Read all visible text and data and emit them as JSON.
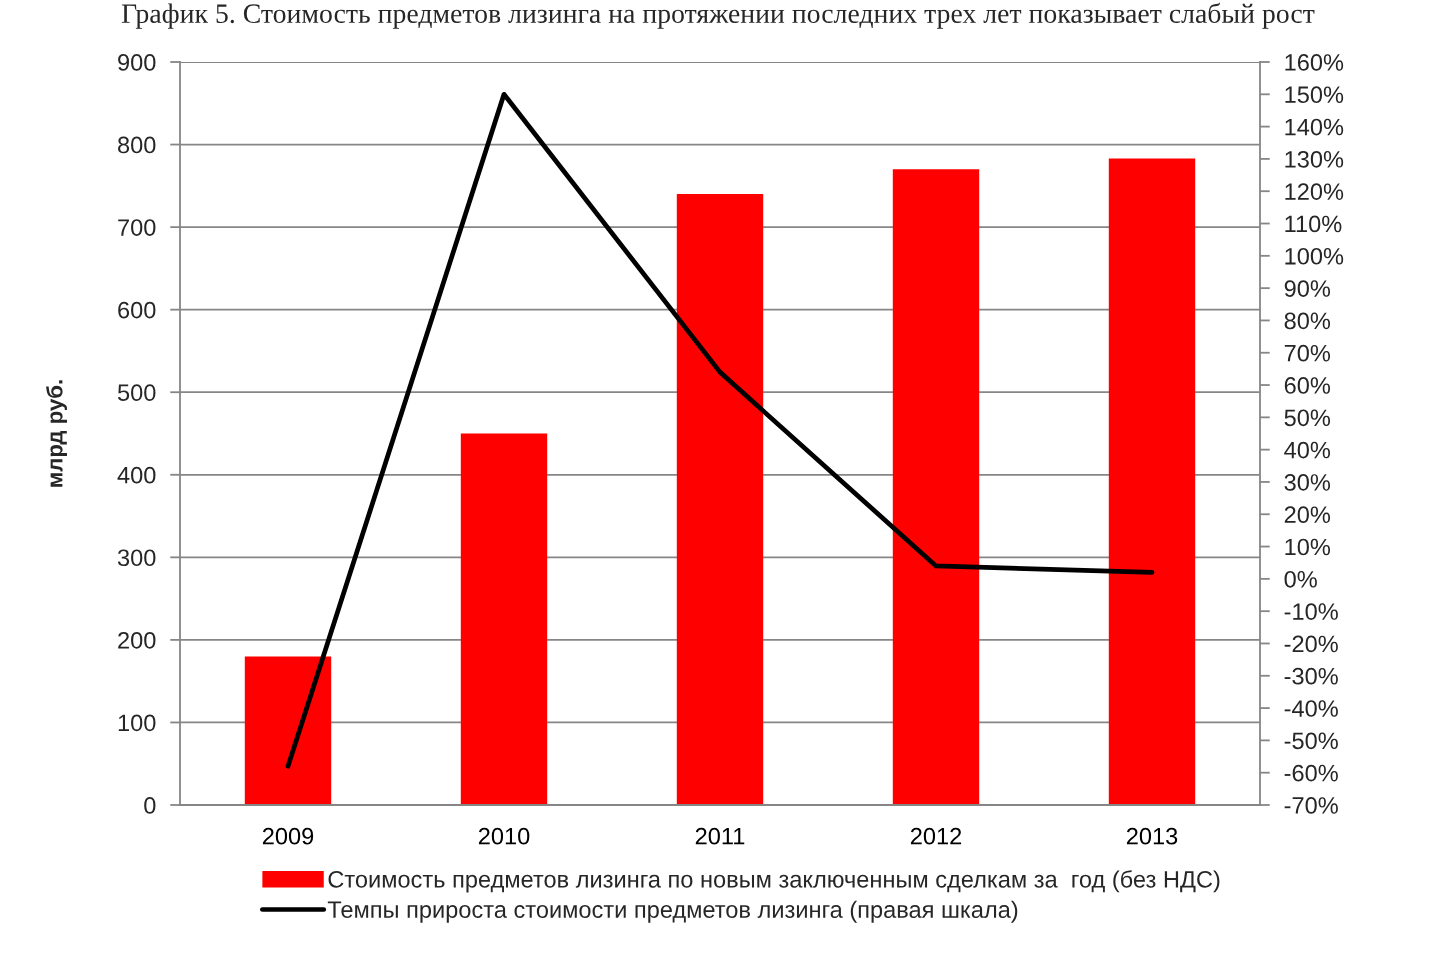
{
  "chart_data": {
    "type": "bar",
    "title": "График 5. Стоимость предметов лизинга на протяжении последних трех лет показывает слабый рост",
    "ylabel": "млрд руб.",
    "categories": [
      "2009",
      "2010",
      "2011",
      "2012",
      "2013"
    ],
    "series": [
      {
        "name": "Стоимость предметов лизинга по новым заключенным сделкам за  год (без НДС)",
        "color": "#ff0000",
        "values": [
          180,
          450,
          740,
          770,
          783
        ]
      },
      {
        "name": "Темпы прироста стоимости предметов лизинга (правая шкала)",
        "type": "line",
        "axis": "y2",
        "color": "#000000",
        "values": [
          -58,
          150,
          64,
          4,
          2
        ]
      }
    ],
    "ylim": [
      0,
      900
    ],
    "yticks": [
      0,
      100,
      200,
      300,
      400,
      500,
      600,
      700,
      800,
      900
    ],
    "y2lim": [
      -70,
      160
    ],
    "y2ticks": [
      {
        "value": -70,
        "label": "-70%"
      },
      {
        "value": -60,
        "label": "-60%"
      },
      {
        "value": -50,
        "label": "-50%"
      },
      {
        "value": -40,
        "label": "-40%"
      },
      {
        "value": -30,
        "label": "-30%"
      },
      {
        "value": -20,
        "label": "-20%"
      },
      {
        "value": -10,
        "label": "-10%"
      },
      {
        "value": 0,
        "label": "0%"
      },
      {
        "value": 10,
        "label": "10%"
      },
      {
        "value": 20,
        "label": "20%"
      },
      {
        "value": 30,
        "label": "30%"
      },
      {
        "value": 40,
        "label": "40%"
      },
      {
        "value": 50,
        "label": "50%"
      },
      {
        "value": 60,
        "label": "60%"
      },
      {
        "value": 70,
        "label": "70%"
      },
      {
        "value": 80,
        "label": "80%"
      },
      {
        "value": 90,
        "label": "90%"
      },
      {
        "value": 100,
        "label": "100%"
      },
      {
        "value": 110,
        "label": "110%"
      },
      {
        "value": 120,
        "label": "120%"
      },
      {
        "value": 130,
        "label": "130%"
      },
      {
        "value": 140,
        "label": "140%"
      },
      {
        "value": 150,
        "label": "150%"
      },
      {
        "value": 160,
        "label": "160%"
      }
    ],
    "grid": "y",
    "legend": "bottom"
  }
}
